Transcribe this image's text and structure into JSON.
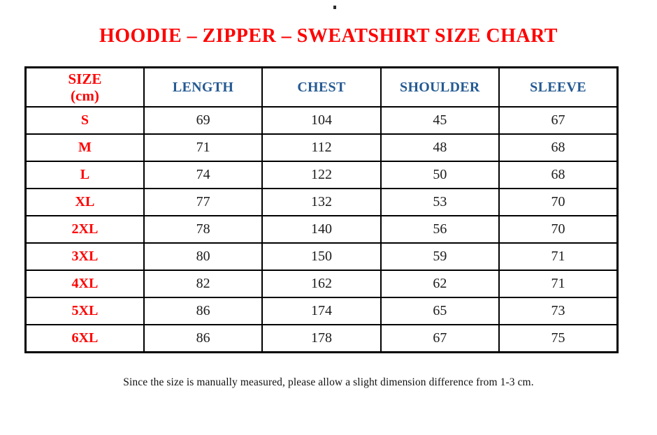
{
  "title": "HOODIE – ZIPPER – SWEATSHIRT SIZE CHART",
  "footnote": "Since the size is manually measured, please allow a slight dimension difference from 1-3 cm.",
  "colors": {
    "title_red": "#fe0000",
    "size_label_red": "#fe0000",
    "measure_header_blue": "#255a92",
    "value_text": "#1c1c1c",
    "table_border": "#000000",
    "background": "#ffffff"
  },
  "chart_data": {
    "type": "table",
    "title": "HOODIE – ZIPPER – SWEATSHIRT SIZE CHART",
    "unit": "cm",
    "columns": [
      "SIZE (cm)",
      "LENGTH",
      "CHEST",
      "SHOULDER",
      "SLEEVE"
    ],
    "header": {
      "size_line1": "SIZE",
      "size_line2": "(cm)",
      "measures": [
        "LENGTH",
        "CHEST",
        "SHOULDER",
        "SLEEVE"
      ]
    },
    "rows": [
      {
        "size": "S",
        "values": [
          "69",
          "104",
          "45",
          "67"
        ]
      },
      {
        "size": "M",
        "values": [
          "71",
          "112",
          "48",
          "68"
        ]
      },
      {
        "size": "L",
        "values": [
          "74",
          "122",
          "50",
          "68"
        ]
      },
      {
        "size": "XL",
        "values": [
          "77",
          "132",
          "53",
          "70"
        ]
      },
      {
        "size": "2XL",
        "values": [
          "78",
          "140",
          "56",
          "70"
        ]
      },
      {
        "size": "3XL",
        "values": [
          "80",
          "150",
          "59",
          "71"
        ]
      },
      {
        "size": "4XL",
        "values": [
          "82",
          "162",
          "62",
          "71"
        ]
      },
      {
        "size": "5XL",
        "values": [
          "86",
          "174",
          "65",
          "73"
        ]
      },
      {
        "size": "6XL",
        "values": [
          "86",
          "178",
          "67",
          "75"
        ]
      }
    ]
  }
}
